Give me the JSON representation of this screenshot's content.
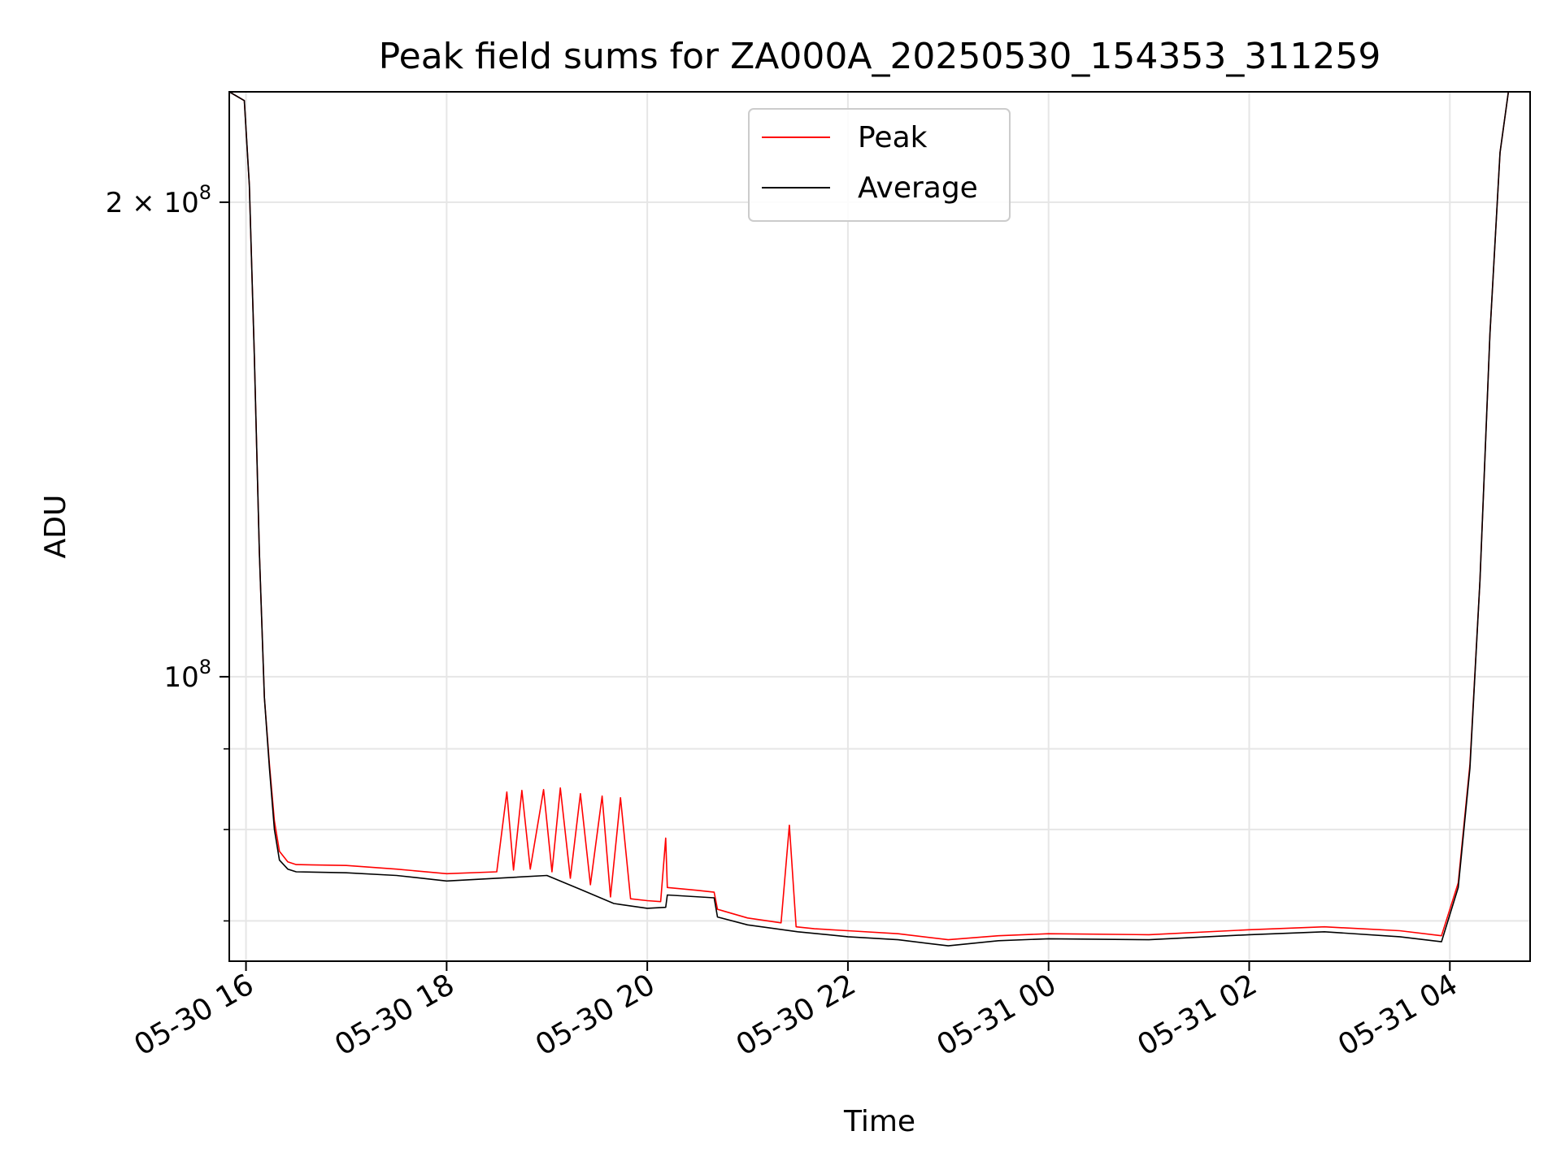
{
  "chart_data": {
    "type": "line",
    "title": "Peak field sums for ZA000A_20250530_154353_311259",
    "xlabel": "Time",
    "ylabel": "ADU",
    "y_scale": "log",
    "ylim": [
      66000000,
      235000000
    ],
    "xlim": [
      "2025-05-30 15:50",
      "2025-05-31 04:48"
    ],
    "grid": true,
    "legend_position": "upper center",
    "x_ticks": [
      {
        "t": "2025-05-30 16:00",
        "label": "05-30 16"
      },
      {
        "t": "2025-05-30 18:00",
        "label": "05-30 18"
      },
      {
        "t": "2025-05-30 20:00",
        "label": "05-30 20"
      },
      {
        "t": "2025-05-30 22:00",
        "label": "05-30 22"
      },
      {
        "t": "2025-05-31 00:00",
        "label": "05-31 00"
      },
      {
        "t": "2025-05-31 02:00",
        "label": "05-31 02"
      },
      {
        "t": "2025-05-31 04:00",
        "label": "05-31 04"
      }
    ],
    "y_major_ticks": [
      {
        "value": 100000000,
        "base": "10",
        "exp": "8",
        "prefix": ""
      },
      {
        "value": 200000000,
        "base": "10",
        "exp": "8",
        "prefix": "2 × "
      }
    ],
    "y_minor_ticks": [
      70000000,
      80000000,
      90000000
    ],
    "series": [
      {
        "name": "Peak",
        "color": "#ff0000",
        "points": [
          [
            "2025-05-30 15:50",
            235000000
          ],
          [
            "2025-05-30 15:59",
            232000000
          ],
          [
            "2025-05-30 16:02",
            205000000
          ],
          [
            "2025-05-30 16:05",
            160000000
          ],
          [
            "2025-05-30 16:08",
            120000000
          ],
          [
            "2025-05-30 16:11",
            97000000
          ],
          [
            "2025-05-30 16:14",
            88000000
          ],
          [
            "2025-05-30 16:17",
            81000000
          ],
          [
            "2025-05-30 16:20",
            77500000
          ],
          [
            "2025-05-30 16:25",
            76300000
          ],
          [
            "2025-05-30 16:30",
            76000000
          ],
          [
            "2025-05-30 17:00",
            75900000
          ],
          [
            "2025-05-30 17:30",
            75500000
          ],
          [
            "2025-05-30 18:00",
            75000000
          ],
          [
            "2025-05-30 18:30",
            75200000
          ],
          [
            "2025-05-30 18:36",
            84500000
          ],
          [
            "2025-05-30 18:40",
            75400000
          ],
          [
            "2025-05-30 18:45",
            84700000
          ],
          [
            "2025-05-30 18:50",
            75500000
          ],
          [
            "2025-05-30 18:58",
            84800000
          ],
          [
            "2025-05-30 19:03",
            75200000
          ],
          [
            "2025-05-30 19:08",
            85000000
          ],
          [
            "2025-05-30 19:14",
            74500000
          ],
          [
            "2025-05-30 19:20",
            84300000
          ],
          [
            "2025-05-30 19:26",
            73800000
          ],
          [
            "2025-05-30 19:33",
            84000000
          ],
          [
            "2025-05-30 19:38",
            72500000
          ],
          [
            "2025-05-30 19:44",
            83800000
          ],
          [
            "2025-05-30 19:50",
            72300000
          ],
          [
            "2025-05-30 20:00",
            72100000
          ],
          [
            "2025-05-30 20:08",
            72000000
          ],
          [
            "2025-05-30 20:11",
            79000000
          ],
          [
            "2025-05-30 20:12",
            73500000
          ],
          [
            "2025-05-30 20:30",
            73200000
          ],
          [
            "2025-05-30 20:40",
            73000000
          ],
          [
            "2025-05-30 20:42",
            71200000
          ],
          [
            "2025-05-30 21:00",
            70300000
          ],
          [
            "2025-05-30 21:20",
            69800000
          ],
          [
            "2025-05-30 21:25",
            80500000
          ],
          [
            "2025-05-30 21:29",
            69400000
          ],
          [
            "2025-05-30 21:40",
            69200000
          ],
          [
            "2025-05-30 22:00",
            69000000
          ],
          [
            "2025-05-30 22:30",
            68700000
          ],
          [
            "2025-05-30 23:00",
            68100000
          ],
          [
            "2025-05-30 23:30",
            68500000
          ],
          [
            "2025-05-31 00:00",
            68700000
          ],
          [
            "2025-05-31 01:00",
            68600000
          ],
          [
            "2025-05-31 02:00",
            69100000
          ],
          [
            "2025-05-31 02:45",
            69400000
          ],
          [
            "2025-05-31 03:30",
            69000000
          ],
          [
            "2025-05-31 03:55",
            68500000
          ],
          [
            "2025-05-31 04:05",
            74000000
          ],
          [
            "2025-05-31 04:12",
            88000000
          ],
          [
            "2025-05-31 04:18",
            115000000
          ],
          [
            "2025-05-31 04:24",
            165000000
          ],
          [
            "2025-05-31 04:30",
            215000000
          ],
          [
            "2025-05-31 04:35",
            235000000
          ],
          [
            "2025-05-31 04:48",
            235000000
          ]
        ]
      },
      {
        "name": "Average",
        "color": "#000000",
        "points": [
          [
            "2025-05-30 15:50",
            235000000
          ],
          [
            "2025-05-30 15:59",
            232000000
          ],
          [
            "2025-05-30 16:02",
            205000000
          ],
          [
            "2025-05-30 16:05",
            160000000
          ],
          [
            "2025-05-30 16:08",
            120000000
          ],
          [
            "2025-05-30 16:11",
            97000000
          ],
          [
            "2025-05-30 16:14",
            87500000
          ],
          [
            "2025-05-30 16:17",
            80000000
          ],
          [
            "2025-05-30 16:20",
            76500000
          ],
          [
            "2025-05-30 16:25",
            75500000
          ],
          [
            "2025-05-30 16:30",
            75200000
          ],
          [
            "2025-05-30 17:00",
            75100000
          ],
          [
            "2025-05-30 17:30",
            74800000
          ],
          [
            "2025-05-30 18:00",
            74200000
          ],
          [
            "2025-05-30 18:30",
            74500000
          ],
          [
            "2025-05-30 19:00",
            74800000
          ],
          [
            "2025-05-30 19:20",
            73300000
          ],
          [
            "2025-05-30 19:40",
            71800000
          ],
          [
            "2025-05-30 20:00",
            71300000
          ],
          [
            "2025-05-30 20:11",
            71400000
          ],
          [
            "2025-05-30 20:12",
            72700000
          ],
          [
            "2025-05-30 20:40",
            72400000
          ],
          [
            "2025-05-30 20:42",
            70400000
          ],
          [
            "2025-05-30 21:00",
            69600000
          ],
          [
            "2025-05-30 21:30",
            68900000
          ],
          [
            "2025-05-30 22:00",
            68400000
          ],
          [
            "2025-05-30 22:30",
            68100000
          ],
          [
            "2025-05-30 23:00",
            67500000
          ],
          [
            "2025-05-30 23:30",
            68000000
          ],
          [
            "2025-05-31 00:00",
            68200000
          ],
          [
            "2025-05-31 01:00",
            68100000
          ],
          [
            "2025-05-31 02:00",
            68600000
          ],
          [
            "2025-05-31 02:45",
            68900000
          ],
          [
            "2025-05-31 03:30",
            68400000
          ],
          [
            "2025-05-31 03:55",
            67900000
          ],
          [
            "2025-05-31 04:05",
            73500000
          ],
          [
            "2025-05-31 04:12",
            87500000
          ],
          [
            "2025-05-31 04:18",
            115000000
          ],
          [
            "2025-05-31 04:24",
            165000000
          ],
          [
            "2025-05-31 04:30",
            215000000
          ],
          [
            "2025-05-31 04:35",
            235000000
          ],
          [
            "2025-05-31 04:48",
            235000000
          ]
        ]
      }
    ]
  }
}
